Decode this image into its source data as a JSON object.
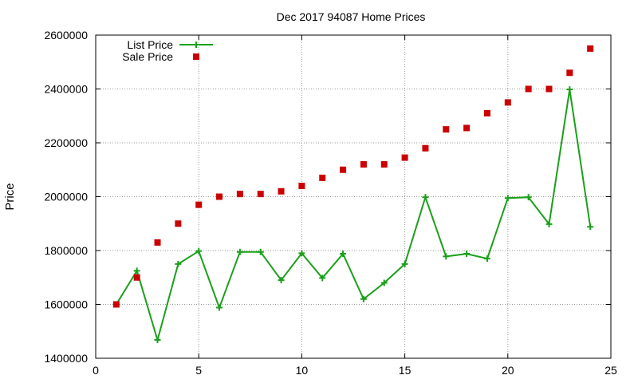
{
  "chart_data": {
    "type": "line",
    "title": "Dec 2017 94087 Home Prices",
    "xlabel": "",
    "ylabel": "Price",
    "xlim": [
      0,
      25
    ],
    "ylim": [
      1400000,
      2600000
    ],
    "xticks": [
      0,
      5,
      10,
      15,
      20,
      25
    ],
    "yticks": [
      1400000,
      1600000,
      1800000,
      2000000,
      2200000,
      2400000,
      2600000
    ],
    "grid": true,
    "legend_position": "top-left",
    "series": [
      {
        "name": "List Price",
        "style": "line-with-plus-markers",
        "color": "#1aa01a",
        "points": [
          [
            1,
            1600000
          ],
          [
            2,
            1725000
          ],
          [
            3,
            1468000
          ],
          [
            4,
            1750000
          ],
          [
            5,
            1798000
          ],
          [
            6,
            1588000
          ],
          [
            7,
            1795000
          ],
          [
            8,
            1795000
          ],
          [
            9,
            1690000
          ],
          [
            10,
            1790000
          ],
          [
            11,
            1698000
          ],
          [
            12,
            1788000
          ],
          [
            13,
            1620000
          ],
          [
            14,
            1680000
          ],
          [
            15,
            1750000
          ],
          [
            16,
            1998000
          ],
          [
            17,
            1778000
          ],
          [
            18,
            1788000
          ],
          [
            19,
            1770000
          ],
          [
            20,
            1995000
          ],
          [
            21,
            1998000
          ],
          [
            22,
            1898000
          ],
          [
            23,
            2398000
          ],
          [
            24,
            1888000
          ]
        ]
      },
      {
        "name": "Sale Price",
        "style": "square-markers",
        "color": "#cc0000",
        "points": [
          [
            1,
            1600000
          ],
          [
            2,
            1700000
          ],
          [
            3,
            1830000
          ],
          [
            4,
            1900000
          ],
          [
            5,
            1970000
          ],
          [
            6,
            2000000
          ],
          [
            7,
            2010000
          ],
          [
            8,
            2010000
          ],
          [
            9,
            2020000
          ],
          [
            10,
            2040000
          ],
          [
            11,
            2070000
          ],
          [
            12,
            2100000
          ],
          [
            13,
            2120000
          ],
          [
            14,
            2120000
          ],
          [
            15,
            2145000
          ],
          [
            16,
            2180000
          ],
          [
            17,
            2250000
          ],
          [
            18,
            2255000
          ],
          [
            19,
            2310000
          ],
          [
            20,
            2350000
          ],
          [
            21,
            2400000
          ],
          [
            22,
            2400000
          ],
          [
            23,
            2460000
          ],
          [
            24,
            2550000
          ]
        ]
      }
    ]
  }
}
